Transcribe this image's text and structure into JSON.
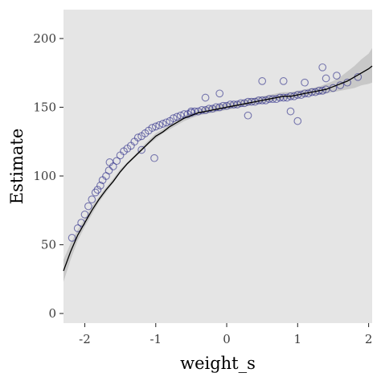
{
  "chart_data": {
    "type": "scatter",
    "title": "",
    "xlabel": "weight_s",
    "ylabel": "Estimate",
    "xlim": [
      -2.3,
      2.05
    ],
    "ylim": [
      -7,
      221
    ],
    "x_ticks": [
      -2,
      -1,
      0,
      1,
      2
    ],
    "y_ticks": [
      0,
      50,
      100,
      150,
      200
    ],
    "x_tick_labels": [
      "-2",
      "-1",
      "0",
      "1",
      "2"
    ],
    "y_tick_labels": [
      "0",
      "50",
      "100",
      "150",
      "200"
    ],
    "grid": false,
    "legend": "none",
    "series": [
      {
        "kind": "points",
        "x": [
          -2.18,
          -2.1,
          -2.05,
          -2.0,
          -1.95,
          -1.9,
          -1.85,
          -1.82,
          -1.78,
          -1.75,
          -1.7,
          -1.66,
          -1.6,
          -1.55,
          -1.5,
          -1.45,
          -1.4,
          -1.35,
          -1.3,
          -1.25,
          -1.2,
          -1.15,
          -1.1,
          -1.05,
          -1.0,
          -0.95,
          -0.9,
          -0.85,
          -0.8,
          -0.75,
          -0.7,
          -0.65,
          -0.6,
          -0.55,
          -0.5,
          -0.45,
          -0.4,
          -0.35,
          -0.3,
          -0.25,
          -0.2,
          -0.15,
          -0.1,
          -0.05,
          0.0,
          0.05,
          0.1,
          0.15,
          0.2,
          0.25,
          0.3,
          0.35,
          0.4,
          0.45,
          0.5,
          0.55,
          0.6,
          0.65,
          0.7,
          0.75,
          0.8,
          0.85,
          0.9,
          0.95,
          1.0,
          1.05,
          1.1,
          1.15,
          1.2,
          1.25,
          1.3,
          1.35,
          1.4,
          1.5,
          1.6,
          1.7,
          1.85,
          -1.2,
          -0.5,
          1.0,
          1.35,
          -1.02,
          -0.1,
          0.5,
          0.8,
          1.1,
          0.3,
          0.9,
          1.4,
          -0.3,
          -1.65,
          1.55
        ],
        "y": [
          55,
          62,
          66,
          72,
          78,
          83,
          88,
          90,
          93,
          97,
          100,
          104,
          107,
          111,
          115,
          118,
          120,
          122,
          125,
          128,
          129,
          131,
          133,
          135,
          136,
          137,
          138,
          139,
          140,
          142,
          143,
          144,
          145,
          145,
          146,
          147,
          147,
          148,
          148,
          149,
          149,
          150,
          150,
          151,
          151,
          152,
          152,
          152,
          153,
          153,
          154,
          154,
          154,
          155,
          155,
          155,
          156,
          156,
          156,
          157,
          157,
          157,
          158,
          158,
          159,
          159,
          160,
          160,
          161,
          161,
          162,
          162,
          163,
          164,
          166,
          168,
          172,
          119,
          147,
          140,
          179,
          113,
          160,
          169,
          169,
          168,
          144,
          147,
          171,
          157,
          110,
          173
        ]
      },
      {
        "kind": "fit_line",
        "x": [
          -2.3,
          -2.2,
          -2.1,
          -2.0,
          -1.9,
          -1.8,
          -1.7,
          -1.6,
          -1.5,
          -1.4,
          -1.3,
          -1.2,
          -1.1,
          -1.0,
          -0.9,
          -0.8,
          -0.7,
          -0.6,
          -0.5,
          -0.4,
          -0.3,
          -0.2,
          -0.1,
          0.0,
          0.1,
          0.2,
          0.3,
          0.4,
          0.5,
          0.6,
          0.7,
          0.8,
          0.9,
          1.0,
          1.1,
          1.2,
          1.3,
          1.4,
          1.5,
          1.6,
          1.7,
          1.8,
          1.9,
          2.0,
          2.05
        ],
        "y": [
          31,
          45,
          57,
          66,
          75,
          83,
          90,
          96,
          103,
          109,
          114,
          119,
          124,
          129,
          132,
          136,
          139,
          142,
          144,
          146,
          147,
          148,
          149,
          150,
          151,
          152,
          153,
          154,
          155,
          156,
          157,
          158,
          158,
          159,
          160,
          161,
          162,
          163,
          165,
          167,
          169,
          172,
          175,
          178,
          180
        ],
        "band_lower": [
          23,
          39,
          53,
          63,
          72,
          81,
          88,
          95,
          102,
          108,
          113,
          118,
          123,
          127,
          131,
          134,
          137,
          140,
          142,
          144,
          145,
          146,
          147,
          148,
          149,
          150,
          151,
          152,
          153,
          154,
          155,
          156,
          156,
          157,
          158,
          159,
          159,
          160,
          161,
          162,
          163,
          164,
          166,
          167,
          168
        ],
        "band_upper": [
          39,
          51,
          61,
          69,
          78,
          85,
          92,
          98,
          105,
          110,
          115,
          121,
          126,
          131,
          134,
          138,
          141,
          144,
          146,
          148,
          150,
          151,
          152,
          153,
          154,
          155,
          156,
          157,
          158,
          159,
          160,
          161,
          161,
          162,
          163,
          164,
          165,
          167,
          169,
          172,
          176,
          180,
          185,
          189,
          193
        ]
      }
    ]
  },
  "colors": {
    "panel_background": "#e5e5e5",
    "point_stroke": "#1a1a80",
    "fit_line": "#000000",
    "band_fill": "#bdbdbd",
    "tick_label": "#3d3d3d",
    "axis_title": "#000000"
  }
}
